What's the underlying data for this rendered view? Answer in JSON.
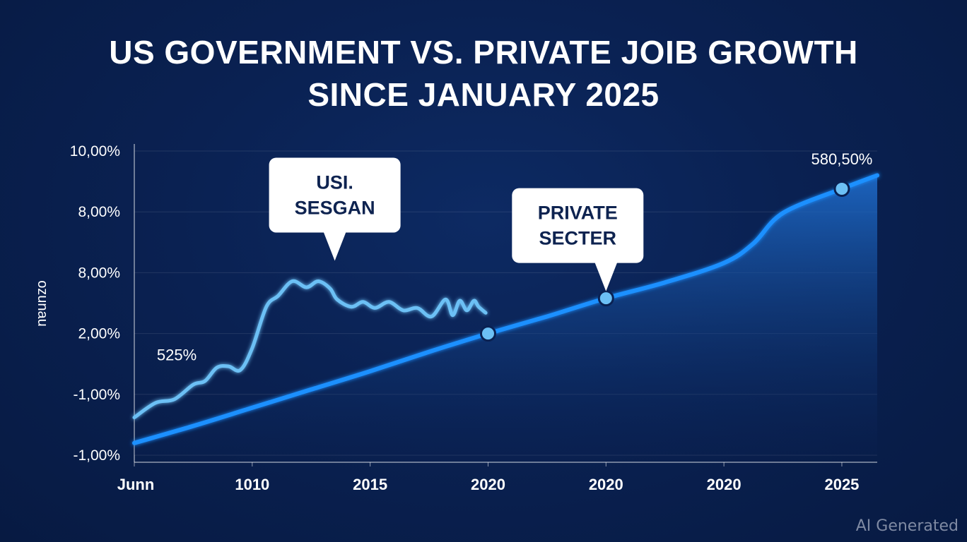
{
  "title_lines": [
    "US GOVERNMENT VS. PRIVATE JOIB GROWTH",
    "SINCE JANUARY 2025"
  ],
  "watermark": "AI Generated",
  "chart_data": {
    "type": "line",
    "title": "US GOVERNMENT VS. PRIVATE JOIB GROWTH SINCE JANUARY 2025",
    "ylabel": "ozunau",
    "xlabel": "",
    "y_tick_labels": [
      "10,00%",
      "8,00%",
      "8,00%",
      "2,00%",
      "-1,00%",
      "-1,00%"
    ],
    "x_tick_labels": [
      "Junn",
      "1010",
      "2015",
      "2020",
      "2020",
      "2020",
      "2025"
    ],
    "y_range": [
      0,
      5
    ],
    "x_range": [
      0,
      6.3
    ],
    "grid": "horizontal",
    "series": [
      {
        "name": "USI. SESGAN",
        "color": "#6cc0f5",
        "style": "line",
        "x": [
          0,
          0.18,
          0.34,
          0.5,
          0.6,
          0.7,
          0.8,
          0.9,
          1.0,
          1.12,
          1.22,
          1.34,
          1.46,
          1.56,
          1.66,
          1.72,
          1.84,
          1.94,
          2.04,
          2.16,
          2.28,
          2.4,
          2.52,
          2.64,
          2.7,
          2.76,
          2.82,
          2.88,
          2.92,
          2.98
        ],
        "y": [
          0.62,
          0.86,
          0.92,
          1.16,
          1.22,
          1.44,
          1.46,
          1.4,
          1.76,
          2.44,
          2.62,
          2.86,
          2.76,
          2.86,
          2.74,
          2.56,
          2.44,
          2.52,
          2.42,
          2.52,
          2.38,
          2.42,
          2.28,
          2.56,
          2.3,
          2.54,
          2.38,
          2.54,
          2.44,
          2.34
        ]
      },
      {
        "name": "PRIVATE SECTER",
        "color": "#1e90ff",
        "style": "area",
        "x": [
          0,
          0.5,
          1.0,
          1.5,
          2.0,
          2.5,
          3.0,
          3.5,
          4.0,
          4.5,
          5.0,
          5.25,
          5.5,
          6.0,
          6.3
        ],
        "y": [
          0.2,
          0.48,
          0.78,
          1.08,
          1.38,
          1.7,
          2.0,
          2.28,
          2.58,
          2.84,
          3.16,
          3.48,
          3.98,
          4.38,
          4.6
        ]
      }
    ],
    "markers": [
      {
        "series": "PRIVATE SECTER",
        "x": 3.0,
        "y": 2.0
      },
      {
        "series": "PRIVATE SECTER",
        "x": 4.0,
        "y": 2.58
      },
      {
        "series": "PRIVATE SECTER",
        "x": 6.0,
        "y": 4.38
      }
    ],
    "callouts": [
      {
        "lines": [
          "USI.",
          "SESGAN"
        ],
        "anchor_x": 1.7,
        "anchor_y": 3.15
      },
      {
        "lines": [
          "PRIVATE",
          "SECTER"
        ],
        "anchor_x": 4.0,
        "anchor_y": 2.65
      }
    ],
    "annotations": [
      {
        "text": "525%",
        "x": 0.36,
        "y": 1.4
      },
      {
        "text": "580,50%",
        "x": 6.0,
        "y": 4.62
      }
    ]
  }
}
